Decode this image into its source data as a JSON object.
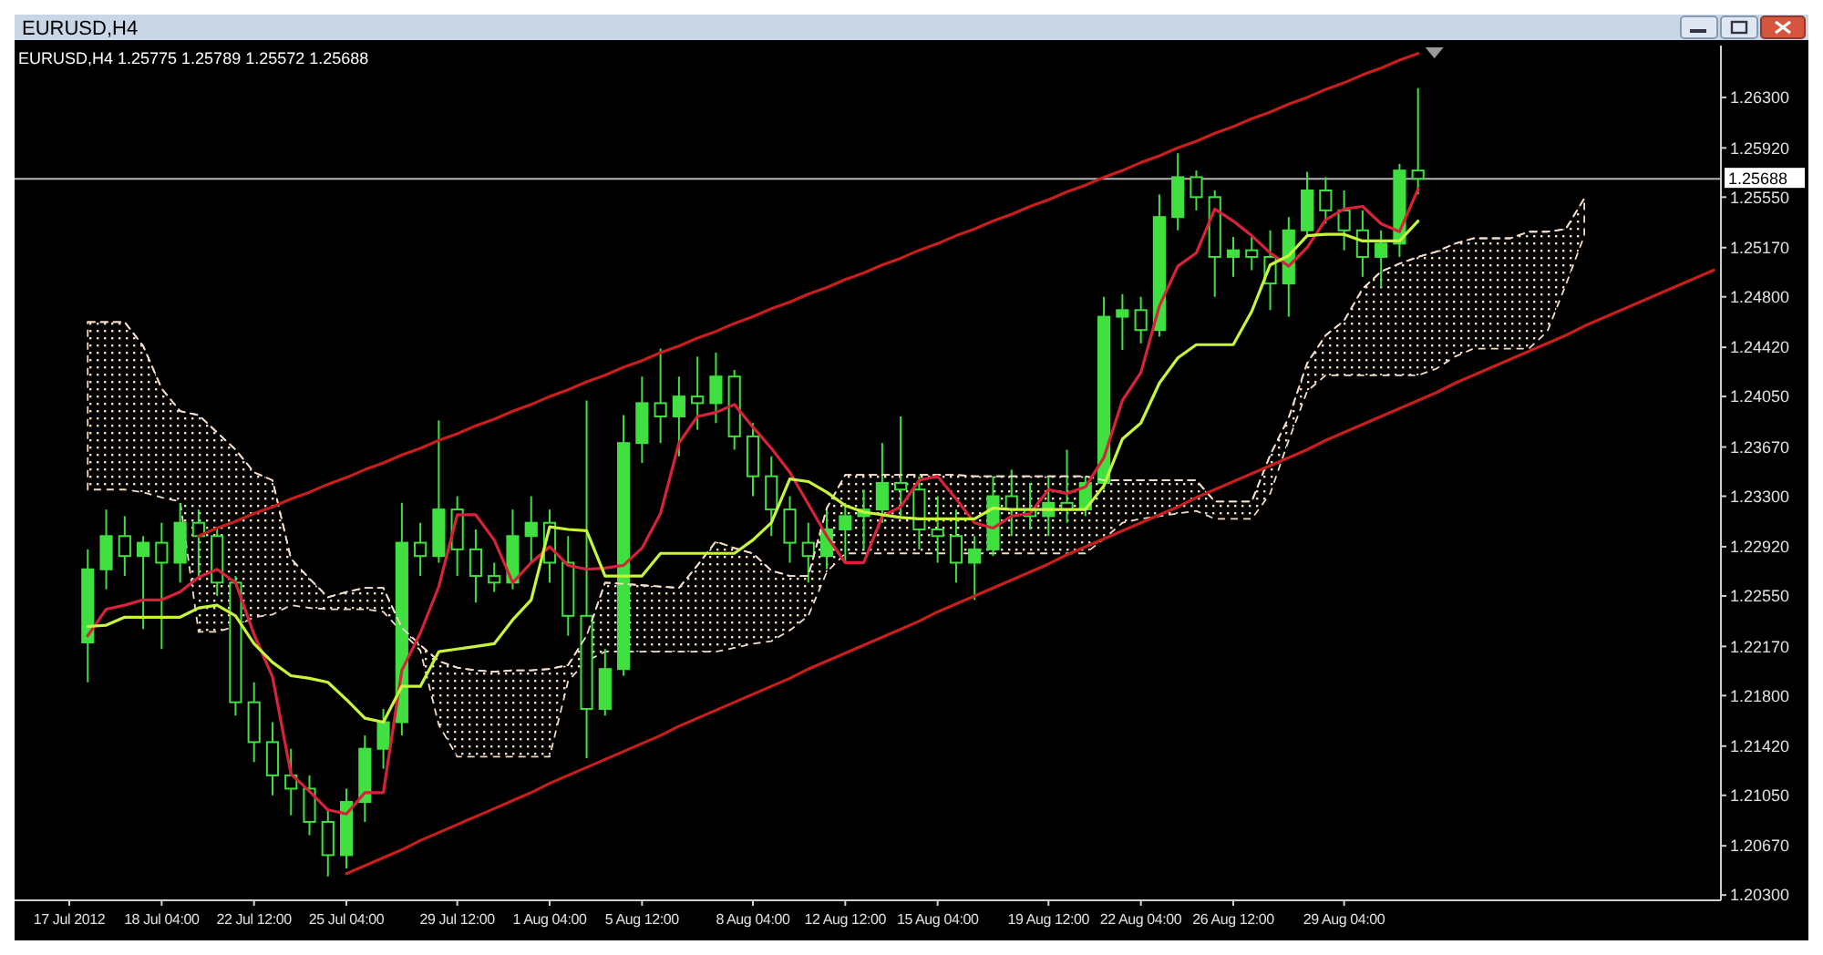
{
  "chart_data": {
    "type": "candlestick",
    "title": "EURUSD,H4",
    "subtitle": "EURUSD,H4  1.25775 1.25789 1.25572 1.25688",
    "color": "#3fe03f",
    "categories": [
      "17 Jul 2012",
      null,
      null,
      null,
      null,
      "18 Jul 04:00",
      null,
      null,
      null,
      null,
      "22 Jul 12:00",
      null,
      null,
      null,
      null,
      "25 Jul 04:00",
      null,
      null,
      null,
      null,
      null,
      "29 Jul 12:00",
      null,
      null,
      null,
      null,
      "1 Aug 04:00",
      null,
      null,
      null,
      null,
      "5 Aug 12:00",
      null,
      null,
      null,
      null,
      null,
      "8 Aug 04:00",
      null,
      null,
      null,
      null,
      "12 Aug 12:00",
      null,
      null,
      null,
      null,
      "15 Aug 04:00",
      null,
      null,
      null,
      null,
      null,
      "19 Aug 12:00",
      null,
      null,
      null,
      null,
      "22 Aug 04:00",
      null,
      null,
      null,
      null,
      "26 Aug 12:00",
      null,
      null,
      null,
      null,
      null,
      "29 Aug 04:00",
      null,
      null,
      null,
      null,
      null,
      null,
      null,
      null,
      null,
      null,
      null,
      null,
      null,
      null,
      null,
      null,
      null,
      null,
      null,
      null
    ],
    "ohlc": [
      null,
      [
        1.222,
        1.229,
        1.219,
        1.2275
      ],
      [
        1.2275,
        1.232,
        1.226,
        1.23
      ],
      [
        1.23,
        1.2315,
        1.227,
        1.2285
      ],
      [
        1.2285,
        1.23,
        1.223,
        1.2295
      ],
      [
        1.2295,
        1.231,
        1.2215,
        1.228
      ],
      [
        1.228,
        1.2325,
        1.2265,
        1.231
      ],
      [
        1.231,
        1.232,
        1.227,
        1.23
      ],
      [
        1.23,
        1.2305,
        1.2255,
        1.2265
      ],
      [
        1.2265,
        1.227,
        1.2165,
        1.2175
      ],
      [
        1.2175,
        1.219,
        1.213,
        1.2145
      ],
      [
        1.2145,
        1.216,
        1.2105,
        1.212
      ],
      [
        1.212,
        1.214,
        1.209,
        1.211
      ],
      [
        1.211,
        1.212,
        1.2075,
        1.2085
      ],
      [
        1.2085,
        1.2095,
        1.2044,
        1.206
      ],
      [
        1.206,
        1.211,
        1.205,
        1.21
      ],
      [
        1.21,
        1.215,
        1.2085,
        1.214
      ],
      [
        1.214,
        1.217,
        1.2125,
        1.216
      ],
      [
        1.216,
        1.2325,
        1.215,
        1.2295
      ],
      [
        1.2295,
        1.231,
        1.227,
        1.2285
      ],
      [
        1.2285,
        1.2387,
        1.228,
        1.232
      ],
      [
        1.232,
        1.233,
        1.227,
        1.229
      ],
      [
        1.229,
        1.2305,
        1.225,
        1.227
      ],
      [
        1.227,
        1.228,
        1.2258,
        1.2265
      ],
      [
        1.2265,
        1.232,
        1.226,
        1.23
      ],
      [
        1.23,
        1.233,
        1.228,
        1.231
      ],
      [
        1.231,
        1.232,
        1.2265,
        1.228
      ],
      [
        1.228,
        1.23,
        1.2225,
        1.224
      ],
      [
        1.224,
        1.2402,
        1.2133,
        1.217
      ],
      [
        1.217,
        1.2215,
        1.2165,
        1.22
      ],
      [
        1.22,
        1.2391,
        1.2195,
        1.237
      ],
      [
        1.237,
        1.242,
        1.2355,
        1.24
      ],
      [
        1.24,
        1.2441,
        1.237,
        1.239
      ],
      [
        1.239,
        1.242,
        1.236,
        1.2405
      ],
      [
        1.2405,
        1.2435,
        1.238,
        1.24
      ],
      [
        1.24,
        1.2438,
        1.2385,
        1.242
      ],
      [
        1.242,
        1.2425,
        1.2365,
        1.2375
      ],
      [
        1.2375,
        1.2385,
        1.233,
        1.2345
      ],
      [
        1.2345,
        1.236,
        1.23,
        1.232
      ],
      [
        1.232,
        1.233,
        1.228,
        1.2295
      ],
      [
        1.2295,
        1.231,
        1.2265,
        1.2285
      ],
      [
        1.2285,
        1.232,
        1.2275,
        1.2305
      ],
      [
        1.2305,
        1.2325,
        1.228,
        1.2315
      ],
      [
        1.2315,
        1.2335,
        1.229,
        1.232
      ],
      [
        1.232,
        1.237,
        1.231,
        1.234
      ],
      [
        1.234,
        1.239,
        1.2315,
        1.2335
      ],
      [
        1.2335,
        1.2345,
        1.229,
        1.2305
      ],
      [
        1.2305,
        1.233,
        1.228,
        1.23
      ],
      [
        1.23,
        1.232,
        1.2265,
        1.228
      ],
      [
        1.228,
        1.23,
        1.2252,
        1.229
      ],
      [
        1.229,
        1.2345,
        1.2285,
        1.233
      ],
      [
        1.233,
        1.235,
        1.23,
        1.232
      ],
      [
        1.232,
        1.234,
        1.2305,
        1.2315
      ],
      [
        1.2315,
        1.2345,
        1.23,
        1.2325
      ],
      [
        1.2325,
        1.2365,
        1.231,
        1.232
      ],
      [
        1.232,
        1.2345,
        1.2315,
        1.234
      ],
      [
        1.234,
        1.248,
        1.2335,
        1.2465
      ],
      [
        1.2465,
        1.2482,
        1.244,
        1.247
      ],
      [
        1.247,
        1.248,
        1.2445,
        1.2455
      ],
      [
        1.2455,
        1.2557,
        1.245,
        1.254
      ],
      [
        1.254,
        1.2588,
        1.253,
        1.257
      ],
      [
        1.257,
        1.2575,
        1.2545,
        1.2555
      ],
      [
        1.2555,
        1.256,
        1.248,
        1.251
      ],
      [
        1.251,
        1.2525,
        1.2495,
        1.2515
      ],
      [
        1.2515,
        1.2525,
        1.25,
        1.251
      ],
      [
        1.251,
        1.253,
        1.247,
        1.249
      ],
      [
        1.249,
        1.254,
        1.2465,
        1.253
      ],
      [
        1.253,
        1.2574,
        1.2525,
        1.256
      ],
      [
        1.256,
        1.257,
        1.2535,
        1.2545
      ],
      [
        1.2545,
        1.256,
        1.2515,
        1.253
      ],
      [
        1.253,
        1.2545,
        1.2495,
        1.251
      ],
      [
        1.251,
        1.253,
        1.2487,
        1.252
      ],
      [
        1.252,
        1.258,
        1.251,
        1.2575
      ],
      [
        1.2575,
        1.2637,
        1.2557,
        1.25688
      ],
      null,
      null,
      null,
      null,
      null,
      null,
      null,
      null,
      null,
      null,
      null,
      null,
      null,
      null,
      null,
      null
    ],
    "ylim": [
      1.2026,
      1.2669
    ],
    "yticks": [
      {
        "value": 1.263,
        "label": "1.26300"
      },
      {
        "value": 1.2592,
        "label": "1.25920"
      },
      {
        "value": 1.2555,
        "label": "1.25550"
      },
      {
        "value": 1.2517,
        "label": "1.25170"
      },
      {
        "value": 1.248,
        "label": "1.24800"
      },
      {
        "value": 1.2442,
        "label": "1.24420"
      },
      {
        "value": 1.2405,
        "label": "1.24050"
      },
      {
        "value": 1.2367,
        "label": "1.23670"
      },
      {
        "value": 1.233,
        "label": "1.23300"
      },
      {
        "value": 1.2292,
        "label": "1.22920"
      },
      {
        "value": 1.2255,
        "label": "1.22550"
      },
      {
        "value": 1.2217,
        "label": "1.22170"
      },
      {
        "value": 1.218,
        "label": "1.21800"
      },
      {
        "value": 1.2142,
        "label": "1.21420"
      },
      {
        "value": 1.2105,
        "label": "1.21050"
      },
      {
        "value": 1.2067,
        "label": "1.20670"
      },
      {
        "value": 1.203,
        "label": "1.20300"
      }
    ],
    "series": [
      {
        "type": "line",
        "color": "#f2dcc8",
        "line_style": "dashed",
        "values": [
          null,
          1.2461,
          1.2461,
          1.2461,
          1.2443,
          1.2411,
          1.2394,
          1.2391,
          1.2378,
          1.2365,
          1.2348,
          1.2342,
          1.2283,
          1.2268,
          1.2254,
          1.2258,
          1.2261,
          1.2261,
          1.2231,
          1.2218,
          1.2206,
          1.2201,
          1.2199,
          1.2198,
          1.2199,
          1.2199,
          1.22,
          1.2203,
          1.2225,
          1.2265,
          1.2264,
          1.2263,
          1.2262,
          1.2261,
          1.2278,
          1.2296,
          1.2291,
          1.2287,
          1.2274,
          1.227,
          1.227,
          1.2321,
          1.2346,
          1.2346,
          1.2346,
          1.2346,
          1.2346,
          1.2346,
          1.2346,
          1.2345,
          1.2345,
          1.2345,
          1.2345,
          1.2345,
          1.2345,
          1.2345,
          1.2342,
          1.2342,
          1.2342,
          1.2342,
          1.2342,
          1.2342,
          1.2326,
          1.2326,
          1.2326,
          1.2361,
          1.2389,
          1.243,
          1.2451,
          1.2462,
          1.2486,
          1.2499,
          1.2505,
          1.251,
          1.2514,
          1.252,
          1.2524,
          1.2524,
          1.2524,
          1.2529,
          1.2529,
          1.2531,
          1.2554,
          null,
          null,
          null,
          null,
          null,
          null,
          null
        ],
        "lower": [
          null,
          1.2335,
          1.2335,
          1.2335,
          1.2333,
          1.2329,
          1.2326,
          1.2228,
          1.2228,
          1.2232,
          1.2239,
          1.2241,
          1.2248,
          1.2246,
          1.2245,
          1.2245,
          1.2245,
          1.2243,
          1.2228,
          1.2214,
          1.2158,
          1.2134,
          1.2134,
          1.2134,
          1.2134,
          1.2134,
          1.2134,
          1.2191,
          1.2206,
          1.2213,
          1.2213,
          1.2213,
          1.2213,
          1.2213,
          1.2213,
          1.2213,
          1.2216,
          1.2219,
          1.2221,
          1.2229,
          1.224,
          1.2273,
          1.2287,
          1.2287,
          1.2287,
          1.2287,
          1.2287,
          1.2287,
          1.2287,
          1.2287,
          1.2287,
          1.2287,
          1.2287,
          1.2287,
          1.2287,
          1.2287,
          1.2298,
          1.231,
          1.2313,
          1.2315,
          1.2317,
          1.2319,
          1.2313,
          1.2313,
          1.2313,
          1.2332,
          1.2372,
          1.2409,
          1.2421,
          1.2421,
          1.2421,
          1.2421,
          1.2421,
          1.2421,
          1.2426,
          1.2435,
          1.2441,
          1.2441,
          1.2441,
          1.2441,
          1.2454,
          1.2489,
          1.2526,
          null,
          null,
          null,
          null,
          null,
          null,
          null
        ],
        "upper": [
          null,
          1.2461,
          1.2461,
          1.2461,
          1.2443,
          1.2411,
          1.2394,
          1.2391,
          1.2378,
          1.2365,
          1.2348,
          1.2342,
          1.2283,
          1.2268,
          1.2254,
          1.2258,
          1.2261,
          1.2261,
          1.2231,
          1.2218,
          1.2206,
          1.2201,
          1.2199,
          1.2198,
          1.2199,
          1.2199,
          1.22,
          1.2203,
          1.2225,
          1.2265,
          1.2264,
          1.2263,
          1.2262,
          1.2261,
          1.2278,
          1.2296,
          1.2291,
          1.2287,
          1.2274,
          1.227,
          1.227,
          1.2321,
          1.2346,
          1.2346,
          1.2346,
          1.2346,
          1.2346,
          1.2346,
          1.2346,
          1.2345,
          1.2345,
          1.2345,
          1.2345,
          1.2345,
          1.2345,
          1.2345,
          1.2342,
          1.2342,
          1.2342,
          1.2342,
          1.2342,
          1.2342,
          1.2326,
          1.2326,
          1.2326,
          1.2361,
          1.2389,
          1.243,
          1.2451,
          1.2462,
          1.2486,
          1.2499,
          1.2505,
          1.251,
          1.2514,
          1.252,
          1.2524,
          1.2524,
          1.2524,
          1.2529,
          1.2529,
          1.2531,
          1.2554,
          null,
          null,
          null,
          null,
          null,
          null,
          null
        ]
      },
      {
        "type": "line",
        "color": "#d8223c",
        "values": [
          null,
          1.2225,
          1.2245,
          1.2248,
          1.2252,
          1.2252,
          1.2258,
          1.2269,
          1.2275,
          1.2265,
          1.2226,
          1.2194,
          1.2121,
          1.2108,
          1.2094,
          1.2091,
          1.2107,
          1.2107,
          1.2199,
          1.2227,
          1.2262,
          1.2316,
          1.2316,
          1.2297,
          1.2265,
          1.228,
          1.2292,
          1.2278,
          1.2275,
          1.2276,
          1.2278,
          1.2291,
          1.2317,
          1.237,
          1.239,
          1.2393,
          1.2399,
          1.2382,
          1.2366,
          1.2348,
          1.2324,
          1.23,
          1.228,
          1.228,
          1.2315,
          1.2322,
          1.2342,
          1.2345,
          1.2328,
          1.231,
          1.2306,
          1.2315,
          1.2317,
          1.2335,
          1.2332,
          1.2337,
          1.2359,
          1.2402,
          1.2423,
          1.2473,
          1.2503,
          1.2513,
          1.2546,
          1.2537,
          1.2526,
          1.2513,
          1.2503,
          1.2517,
          1.2538,
          1.2546,
          1.2548,
          1.2535,
          1.2529,
          1.2561,
          null,
          null,
          null,
          null,
          null,
          null,
          null,
          null,
          null,
          null,
          null,
          null,
          null,
          null,
          null,
          null
        ]
      },
      {
        "type": "line",
        "color": "#c8f53c",
        "values": [
          null,
          1.2232,
          1.2233,
          1.2239,
          1.2239,
          1.2239,
          1.2239,
          1.2246,
          1.2248,
          1.224,
          1.2219,
          1.2205,
          1.2195,
          1.2193,
          1.219,
          1.2177,
          1.2163,
          1.216,
          1.2187,
          1.2187,
          1.2213,
          1.2215,
          1.2217,
          1.2219,
          1.2237,
          1.2252,
          1.2307,
          1.2305,
          1.2304,
          1.227,
          1.227,
          1.227,
          1.2287,
          1.2287,
          1.2287,
          1.2287,
          1.2287,
          1.2297,
          1.231,
          1.2343,
          1.2341,
          1.2333,
          1.2323,
          1.2318,
          1.2316,
          1.2314,
          1.2313,
          1.2313,
          1.2313,
          1.2313,
          1.2321,
          1.232,
          1.232,
          1.232,
          1.232,
          1.232,
          1.2338,
          1.2373,
          1.2385,
          1.2415,
          1.2434,
          1.2444,
          1.2444,
          1.2444,
          1.2469,
          1.2504,
          1.2511,
          1.2526,
          1.2527,
          1.2527,
          1.2522,
          1.2522,
          1.2522,
          1.2537,
          null,
          null,
          null,
          null,
          null,
          null,
          null,
          null,
          null,
          null,
          null,
          null,
          null,
          null,
          null,
          null
        ]
      },
      {
        "type": "line",
        "color": "#c81e1e",
        "values": [
          null,
          null,
          null,
          null,
          null,
          null,
          null,
          1.23,
          1.2306,
          1.2311,
          1.2317,
          1.2322,
          1.2328,
          1.2333,
          1.2339,
          1.2344,
          1.235,
          1.2355,
          1.2361,
          1.2366,
          1.2372,
          1.2377,
          1.2383,
          1.2388,
          1.2394,
          1.2399,
          1.2405,
          1.241,
          1.2416,
          1.2421,
          1.2427,
          1.2432,
          1.2438,
          1.2443,
          1.2449,
          1.2454,
          1.246,
          1.2465,
          1.2471,
          1.2476,
          1.2482,
          1.2487,
          1.2493,
          1.2498,
          1.2504,
          1.2509,
          1.2515,
          1.252,
          1.2526,
          1.2531,
          1.2537,
          1.2542,
          1.2548,
          1.2553,
          1.2559,
          1.2564,
          1.257,
          1.2575,
          1.2581,
          1.2586,
          1.2592,
          1.2597,
          1.2603,
          1.2608,
          1.2614,
          1.2619,
          1.2625,
          1.263,
          1.2636,
          1.2641,
          1.2647,
          1.2652,
          1.2658,
          1.2663,
          null,
          null,
          null,
          null,
          null,
          null,
          null,
          null,
          null,
          null,
          null,
          null,
          null,
          null,
          null,
          null
        ]
      },
      {
        "type": "line",
        "color": "#c81e1e",
        "values": [
          null,
          null,
          null,
          null,
          null,
          null,
          null,
          null,
          null,
          null,
          null,
          null,
          null,
          null,
          null,
          1.2046,
          1.2052,
          1.2058,
          1.2064,
          1.2071,
          1.2077,
          1.2083,
          1.2089,
          1.2095,
          1.2101,
          1.2107,
          1.2114,
          1.212,
          1.2126,
          1.2132,
          1.2138,
          1.2144,
          1.215,
          1.2157,
          1.2163,
          1.2169,
          1.2175,
          1.2181,
          1.2187,
          1.2193,
          1.22,
          1.2206,
          1.2212,
          1.2218,
          1.2224,
          1.223,
          1.2236,
          1.2243,
          1.2249,
          1.2255,
          1.2261,
          1.2267,
          1.2273,
          1.2279,
          1.2286,
          1.2292,
          1.2298,
          1.2304,
          1.231,
          1.2316,
          1.2322,
          1.2329,
          1.2335,
          1.2341,
          1.2347,
          1.2353,
          1.2359,
          1.2365,
          1.2372,
          1.2378,
          1.2384,
          1.239,
          1.2396,
          1.2402,
          1.2408,
          1.2415,
          1.2421,
          1.2427,
          1.2433,
          1.2439,
          1.2445,
          1.2451,
          1.2458,
          1.2464,
          1.247,
          1.2476,
          1.2482,
          1.2488,
          1.2494,
          1.25
        ]
      }
    ],
    "ref_lines": [
      {
        "axis": "y",
        "value": 1.25688,
        "label": "1.25688",
        "color": "#b4b4b4"
      }
    ]
  }
}
